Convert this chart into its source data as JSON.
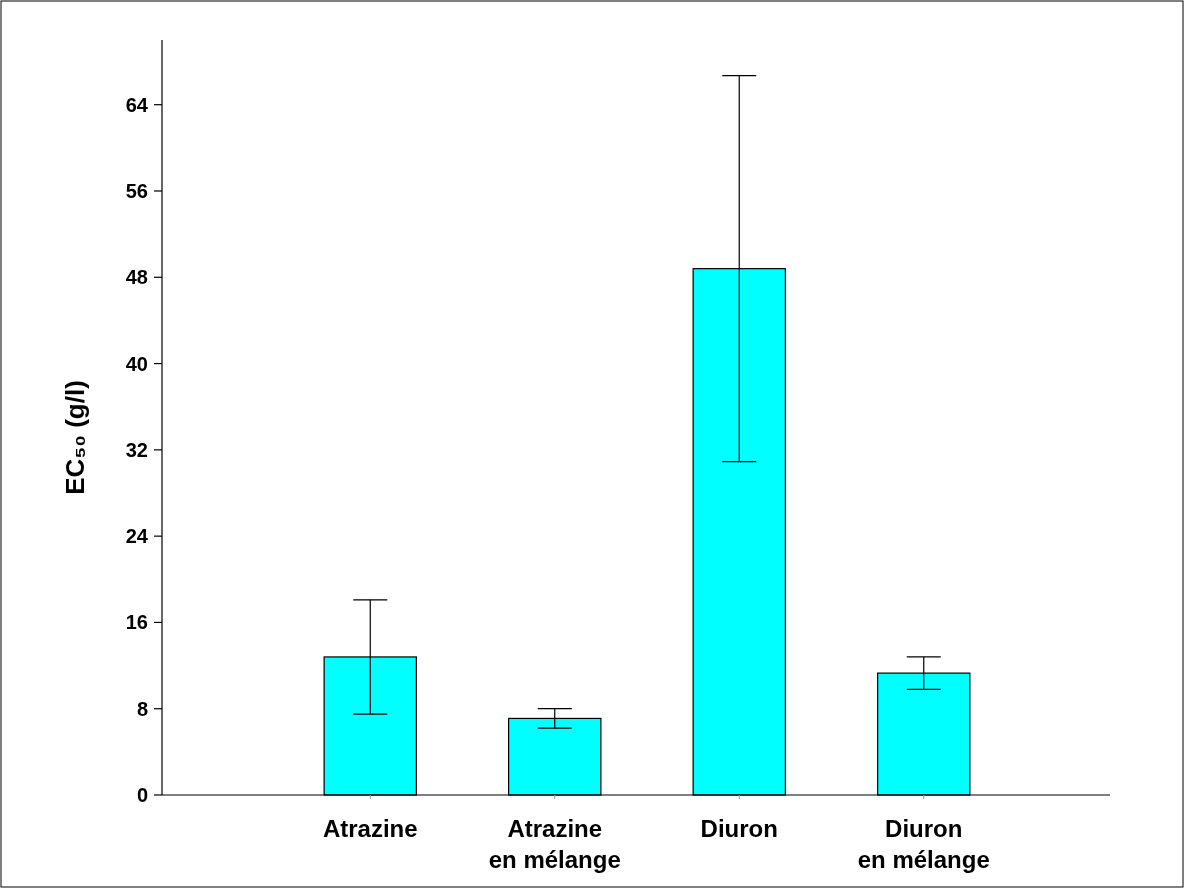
{
  "chart_data": {
    "type": "bar",
    "ylabel": "EC₅₀ (g/l)",
    "categories": [
      "Atrazine",
      "Atrazine\nen mélange",
      "Diuron",
      "Diuron\nen mélange"
    ],
    "values": [
      12.8,
      7.1,
      48.8,
      11.3
    ],
    "errors": [
      5.3,
      0.9,
      17.9,
      1.5
    ],
    "color": "#00ffff",
    "ylim": [
      0,
      70
    ],
    "yticks": [
      0,
      8,
      16,
      24,
      32,
      40,
      48,
      56,
      64
    ],
    "grid": false
  }
}
